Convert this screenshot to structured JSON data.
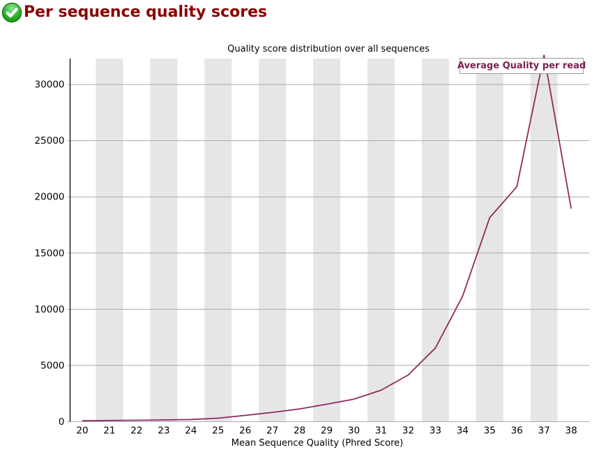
{
  "page": {
    "title": "Per sequence quality scores",
    "status": "pass"
  },
  "colors": {
    "title": "#8B0000",
    "line": "#8E2A5E",
    "legend_text": "#7D2053",
    "band": "#E6E6E6",
    "grid": "#AAAAAA",
    "axis": "#000000",
    "icon_green": "#2DB82D"
  },
  "legend": {
    "label": "Average Quality per read"
  },
  "chart_data": {
    "type": "line",
    "title": "Quality score distribution over all sequences",
    "xlabel": "Mean Sequence Quality (Phred Score)",
    "ylabel": "",
    "x": [
      20,
      21,
      22,
      23,
      24,
      25,
      26,
      27,
      28,
      29,
      30,
      31,
      32,
      33,
      34,
      35,
      36,
      37,
      38
    ],
    "series": [
      {
        "name": "Average Quality per read",
        "values": [
          80,
          105,
          125,
          155,
          190,
          310,
          560,
          820,
          1130,
          1550,
          2000,
          2800,
          4150,
          6550,
          11150,
          18150,
          20900,
          32600,
          18950
        ]
      }
    ],
    "ylim": [
      0,
      32300
    ],
    "yticks": [
      0,
      5000,
      10000,
      15000,
      20000,
      25000,
      30000
    ],
    "grid": "horizontal-only",
    "background_bands": "gray band on every odd x value",
    "legend_position": "top-right"
  }
}
